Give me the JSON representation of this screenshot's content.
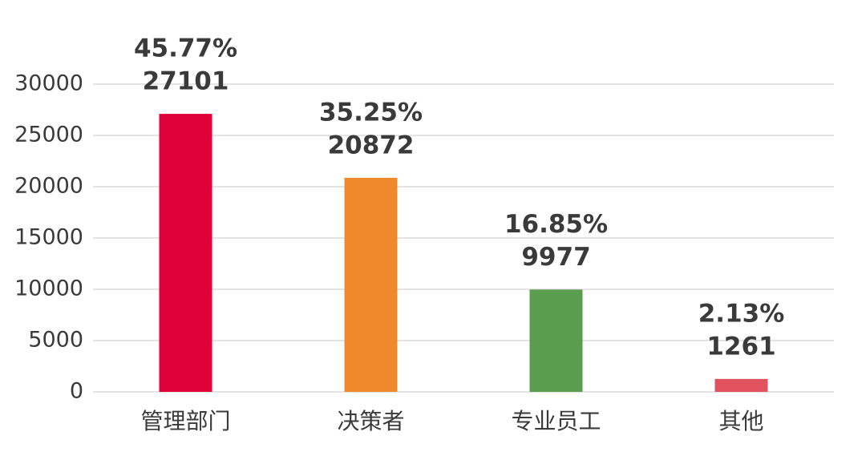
{
  "chart_data": {
    "type": "bar",
    "categories": [
      "管理部门",
      "决策者",
      "专业员工",
      "其他"
    ],
    "values": [
      27101,
      20872,
      9977,
      1261
    ],
    "shares": [
      45.77,
      35.25,
      16.85,
      2.13
    ],
    "share_labels": [
      "45.77%",
      "35.25%",
      "16.85%",
      "2.13%"
    ],
    "colors": [
      "#e0003a",
      "#ee8a2c",
      "#5a9d4e",
      "#e0535e"
    ],
    "ylim": [
      0,
      30000
    ],
    "yticks": [
      0,
      5000,
      10000,
      15000,
      20000,
      25000,
      30000
    ],
    "grid": true
  }
}
